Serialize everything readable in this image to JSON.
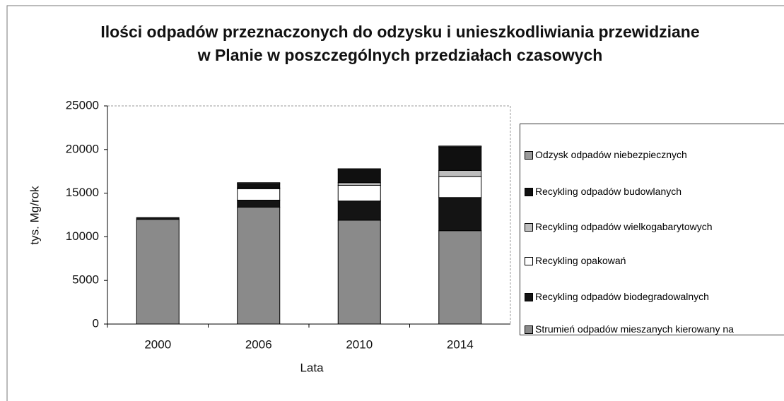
{
  "chart_data": {
    "type": "stacked_bar",
    "title": "Ilości odpadów przeznaczonych do odzysku i unieszkodliwiania przewidziane w Planie w poszczególnych przedziałach czasowych",
    "x_label": "Lata",
    "y_label": "tys. Mg/rok",
    "categories": [
      "2000",
      "2006",
      "2010",
      "2014"
    ],
    "series": [
      {
        "name": "Strumień odpadów mieszanych kierowany na składowiska",
        "color": "#8a8a8a",
        "values": [
          12000,
          13400,
          11900,
          10700
        ]
      },
      {
        "name": "Recykling odpadów biodegradowalnych",
        "color": "#141414",
        "values": [
          200,
          800,
          2200,
          3800
        ]
      },
      {
        "name": "Recykling opakowań",
        "color": "#ffffff",
        "values": [
          0,
          1300,
          1800,
          2400
        ]
      },
      {
        "name": "Recykling odpadów wielkogabarytowych",
        "color": "#bdbdbd",
        "values": [
          0,
          100,
          300,
          700
        ]
      },
      {
        "name": "Recykling odpadów budowlanych",
        "color": "#101010",
        "values": [
          0,
          500,
          1500,
          2700
        ]
      },
      {
        "name": "Odzysk odpadów niebezpiecznych",
        "color": "#9a9a9a",
        "values": [
          0,
          100,
          100,
          100
        ]
      }
    ],
    "ylim": [
      0,
      25000
    ],
    "yticks": [
      0,
      5000,
      10000,
      15000,
      20000,
      25000
    ],
    "grid": false,
    "legend": "right"
  }
}
